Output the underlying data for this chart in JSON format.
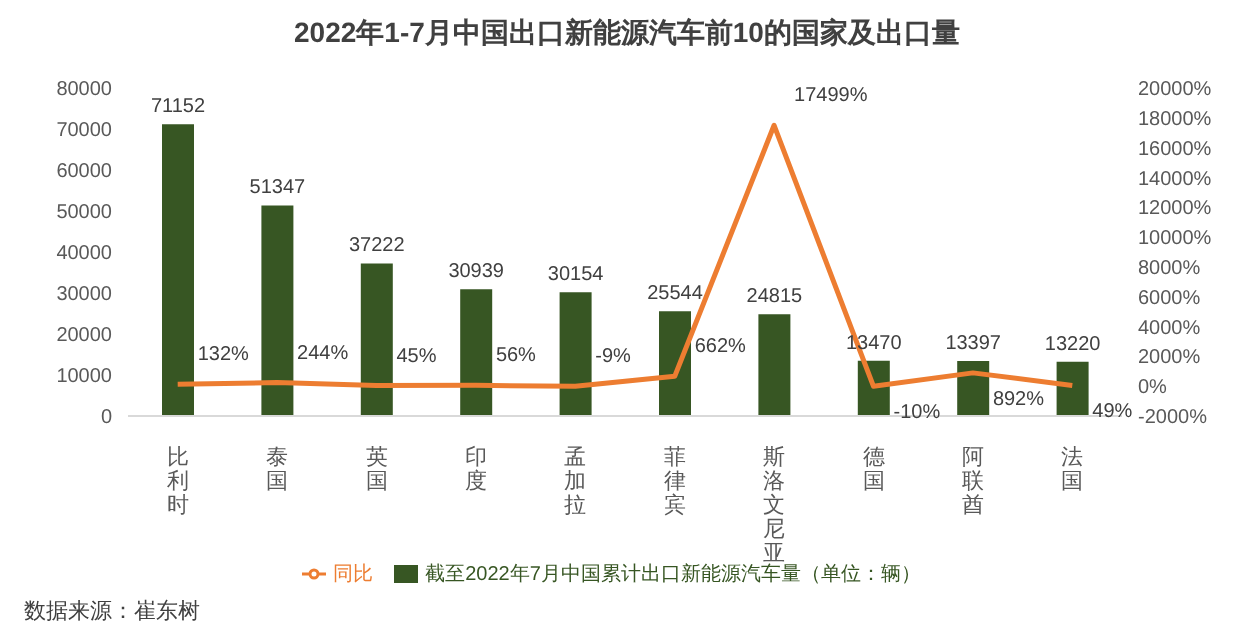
{
  "chart_data": {
    "type": "bar",
    "title": "2022年1-7月中国出口新能源汽车前10的国家及出口量",
    "categories": [
      "比利时",
      "泰国",
      "英国",
      "印度",
      "孟加拉",
      "菲律宾",
      "斯洛文尼亚",
      "德国",
      "阿联酋",
      "法国"
    ],
    "series": [
      {
        "name": "截至2022年7月中国累计出口新能源汽车量（单位：辆）",
        "color": "#375623",
        "values": [
          71152,
          51347,
          37222,
          30939,
          30154,
          25544,
          24815,
          13470,
          13397,
          13220
        ]
      },
      {
        "name": "同比",
        "type": "line",
        "axis": "y2",
        "color": "#ed7d31",
        "values": [
          132,
          244,
          45,
          56,
          -9,
          662,
          17499,
          -10,
          892,
          49
        ],
        "value_labels": [
          "132%",
          "244%",
          "45%",
          "56%",
          "-9%",
          "662%",
          "17499%",
          "-10%",
          "892%",
          "49%"
        ]
      }
    ],
    "data_labels": true,
    "ylim": [
      0,
      80000
    ],
    "yticks": [
      0,
      10000,
      20000,
      30000,
      40000,
      50000,
      60000,
      70000,
      80000
    ],
    "y2lim": [
      -2000,
      20000
    ],
    "y2ticks": [
      {
        "value": -2000,
        "label": "-2000%"
      },
      {
        "value": 0,
        "label": "0%"
      },
      {
        "value": 2000,
        "label": "2000%"
      },
      {
        "value": 4000,
        "label": "4000%"
      },
      {
        "value": 6000,
        "label": "6000%"
      },
      {
        "value": 8000,
        "label": "8000%"
      },
      {
        "value": 10000,
        "label": "10000%"
      },
      {
        "value": 12000,
        "label": "12000%"
      },
      {
        "value": 14000,
        "label": "14000%"
      },
      {
        "value": 16000,
        "label": "16000%"
      },
      {
        "value": 18000,
        "label": "18000%"
      },
      {
        "value": 20000,
        "label": "20000%"
      }
    ],
    "legend": "bottom",
    "marker": "none",
    "annotations": [
      "数据来源：崔东树"
    ]
  }
}
